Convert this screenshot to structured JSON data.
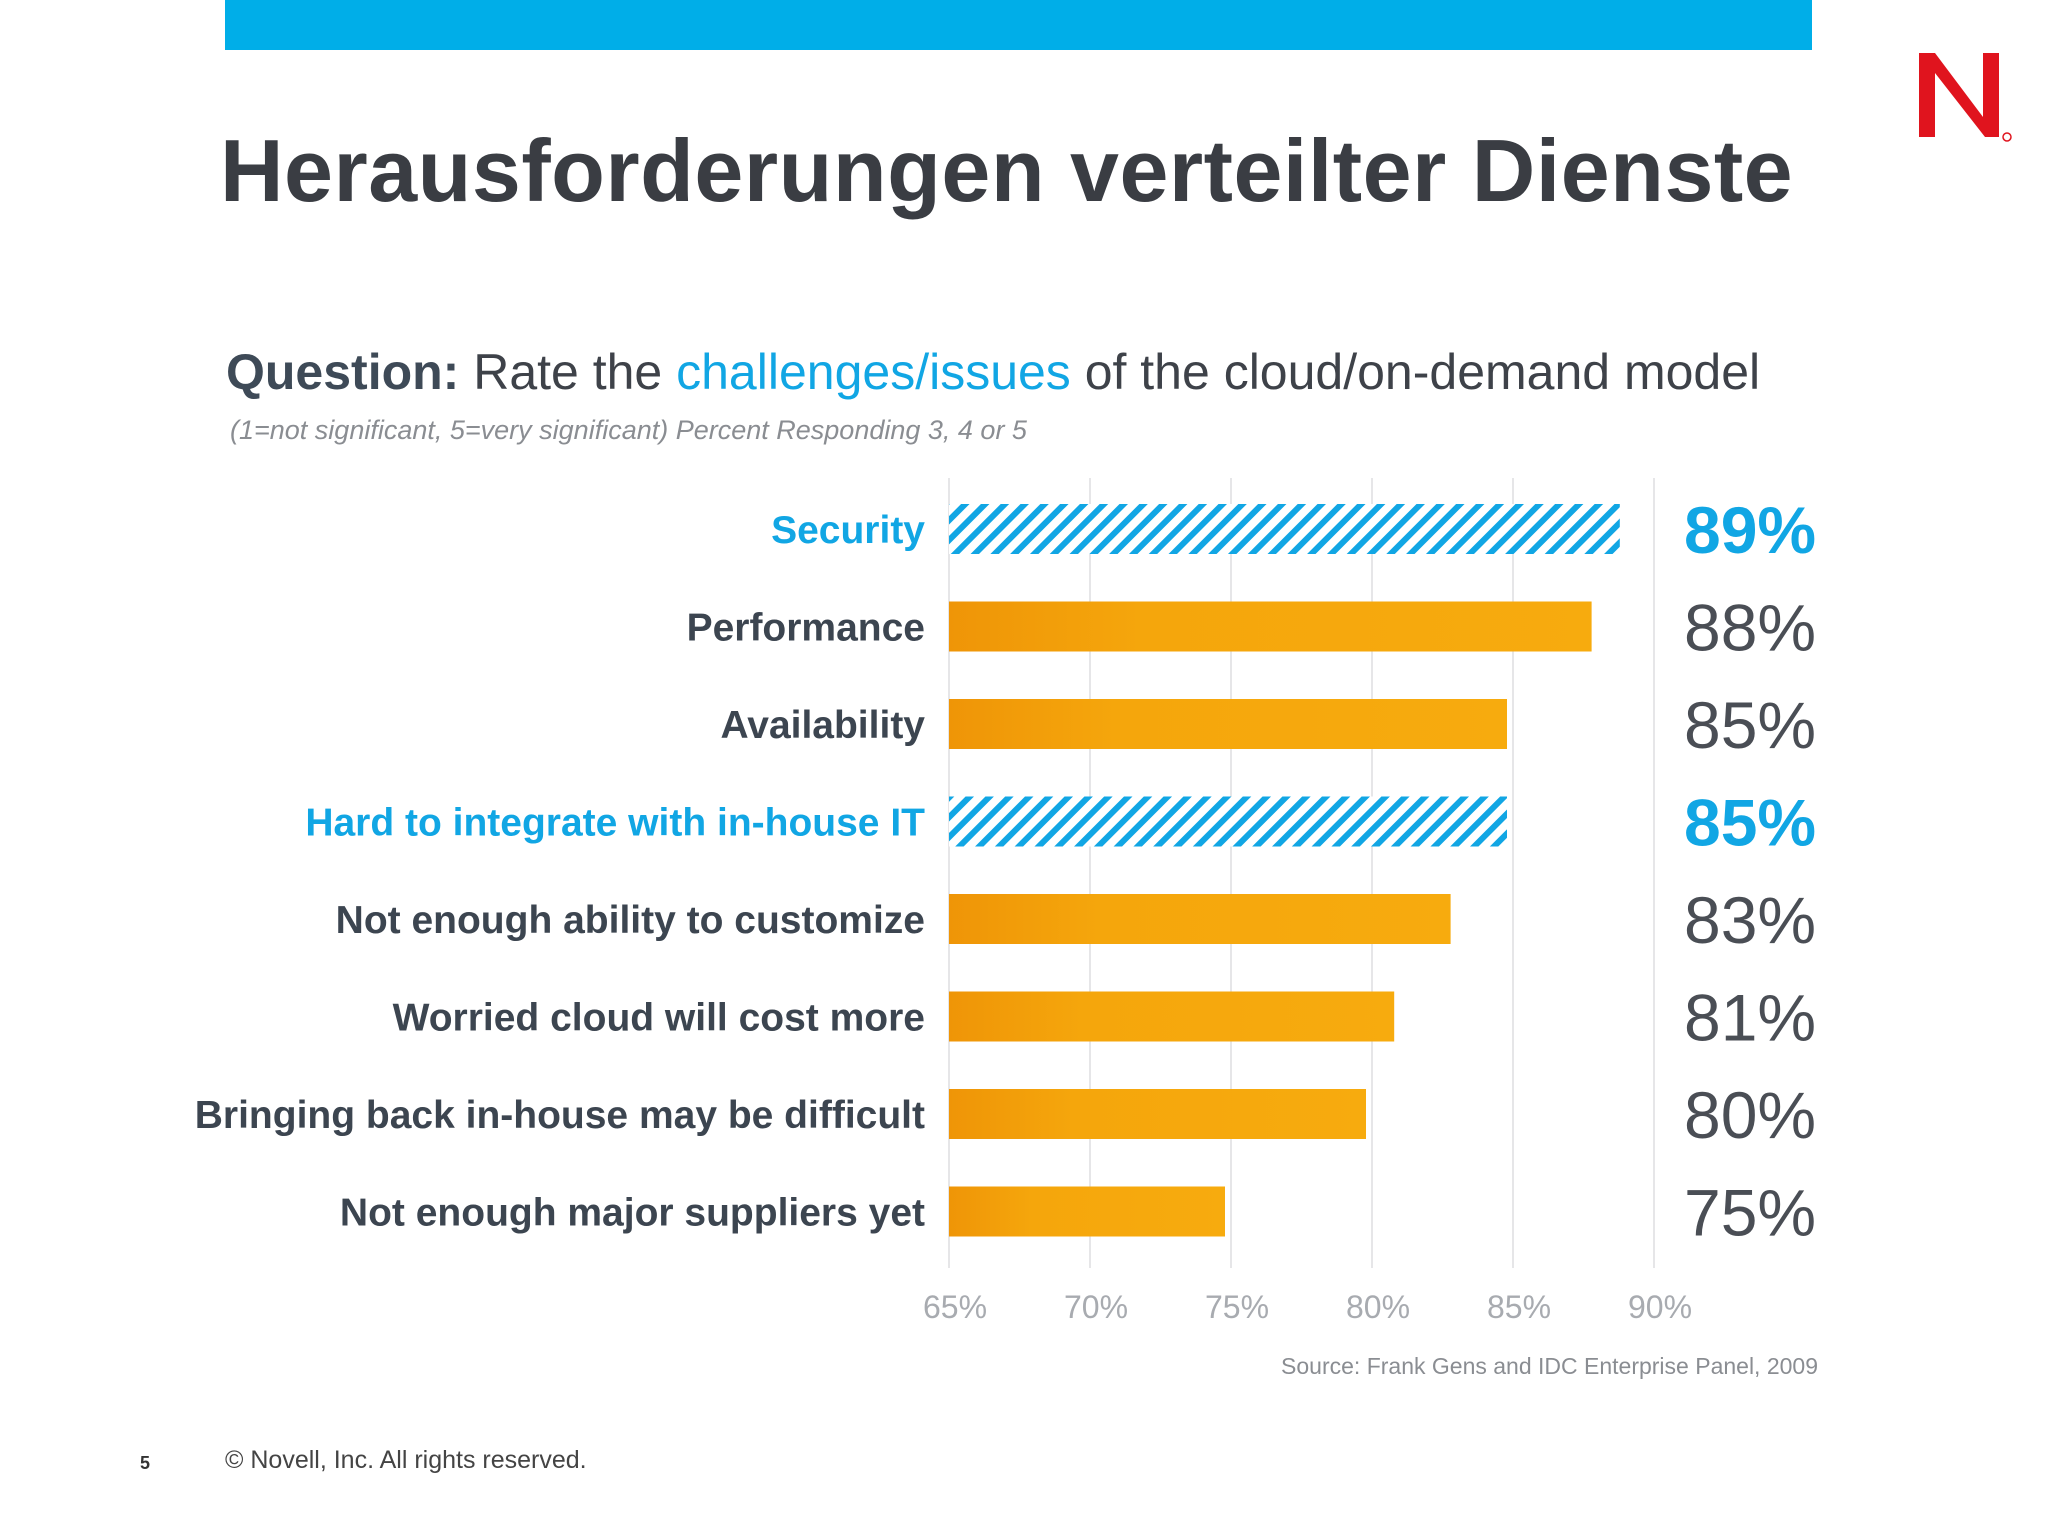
{
  "header": {
    "accent_color": "#00aee8",
    "logo_text": "N",
    "title": "Herausforderungen verteilter Dienste"
  },
  "question": {
    "label": "Question:",
    "pre": " Rate the ",
    "highlight": "challenges/issues",
    "post": " of the cloud/on-demand model",
    "note": "(1=not significant, 5=very significant) Percent Responding 3, 4 or 5"
  },
  "chart_data": {
    "type": "bar",
    "orientation": "horizontal",
    "categories": [
      "Security",
      "Performance",
      "Availability",
      "Hard to integrate with in-house IT",
      "Not enough ability to customize",
      "Worried cloud will cost more",
      "Bringing back in-house may be difficult",
      "Not enough major suppliers yet"
    ],
    "values": [
      89,
      88,
      85,
      85,
      83,
      81,
      80,
      75
    ],
    "value_labels": [
      "89%",
      "88%",
      "85%",
      "85%",
      "83%",
      "81%",
      "80%",
      "75%"
    ],
    "highlighted": [
      true,
      false,
      false,
      true,
      false,
      false,
      false,
      false
    ],
    "xlim": [
      65,
      90
    ],
    "x_ticks": [
      "65%",
      "70%",
      "75%",
      "80%",
      "85%",
      "90%"
    ],
    "grid": true,
    "colors": {
      "bar": "#f5a30a",
      "bar_start": "#ef9507",
      "highlight": "#11a6e4"
    }
  },
  "source": "Source: Frank Gens and IDC Enterprise Panel, 2009",
  "footer": {
    "page_number": "5",
    "copyright": "©  Novell, Inc.  All rights reserved."
  }
}
